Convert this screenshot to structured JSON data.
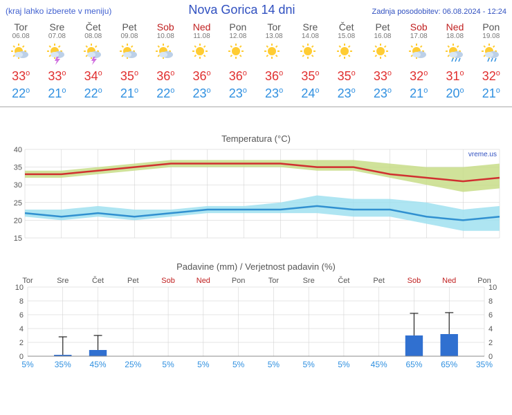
{
  "header": {
    "menu_hint": "(kraj lahko izberete v meniju)",
    "title": "Nova Gorica 14 dni",
    "updated": "Zadnja posodobitev: 06.08.2024 - 12:24"
  },
  "days": [
    {
      "name": "Tor",
      "date": "06.08",
      "weekend": false,
      "icon": "sun-cloud",
      "hi": 33,
      "lo": 22
    },
    {
      "name": "Sre",
      "date": "07.08",
      "weekend": false,
      "icon": "storm",
      "hi": 33,
      "lo": 21
    },
    {
      "name": "Čet",
      "date": "08.08",
      "weekend": false,
      "icon": "storm",
      "hi": 34,
      "lo": 22
    },
    {
      "name": "Pet",
      "date": "09.08",
      "weekend": false,
      "icon": "sun-cloud",
      "hi": 35,
      "lo": 21
    },
    {
      "name": "Sob",
      "date": "10.08",
      "weekend": true,
      "icon": "sun-cloud",
      "hi": 36,
      "lo": 22
    },
    {
      "name": "Ned",
      "date": "11.08",
      "weekend": true,
      "icon": "sun",
      "hi": 36,
      "lo": 23
    },
    {
      "name": "Pon",
      "date": "12.08",
      "weekend": false,
      "icon": "sun",
      "hi": 36,
      "lo": 23
    },
    {
      "name": "Tor",
      "date": "13.08",
      "weekend": false,
      "icon": "sun",
      "hi": 36,
      "lo": 23
    },
    {
      "name": "Sre",
      "date": "14.08",
      "weekend": false,
      "icon": "sun",
      "hi": 35,
      "lo": 24
    },
    {
      "name": "Čet",
      "date": "15.08",
      "weekend": false,
      "icon": "sun",
      "hi": 35,
      "lo": 23
    },
    {
      "name": "Pet",
      "date": "16.08",
      "weekend": false,
      "icon": "sun",
      "hi": 33,
      "lo": 23
    },
    {
      "name": "Sob",
      "date": "17.08",
      "weekend": true,
      "icon": "sun-cloud",
      "hi": 32,
      "lo": 21
    },
    {
      "name": "Ned",
      "date": "18.08",
      "weekend": true,
      "icon": "rain",
      "hi": 31,
      "lo": 20
    },
    {
      "name": "Pon",
      "date": "19.08",
      "weekend": false,
      "icon": "rain",
      "hi": 32,
      "lo": 21
    }
  ],
  "temp_chart": {
    "title": "Temperatura (°C)",
    "attrib": "vreme.us",
    "ylim": [
      15,
      40
    ],
    "ytick_step": 5,
    "grid_color": "#cccccc",
    "hi_line_color": "#d03030",
    "hi_band_color": "#c8dd88",
    "lo_line_color": "#3090d0",
    "lo_band_color": "#a0e0f0",
    "line_width": 2.5,
    "hi_band": {
      "upper": [
        34,
        34,
        35,
        36,
        37,
        37,
        37,
        37,
        37,
        37,
        36,
        35,
        35,
        36
      ],
      "lower": [
        32,
        32,
        33,
        34,
        35,
        35,
        35,
        35,
        34,
        34,
        32,
        30,
        28,
        29
      ]
    },
    "lo_band": {
      "upper": [
        23,
        23,
        24,
        23,
        23,
        24,
        24,
        25,
        27,
        26,
        26,
        25,
        23,
        24
      ],
      "lower": [
        21,
        20,
        21,
        20,
        21,
        22,
        22,
        22,
        22,
        21,
        21,
        19,
        17,
        17
      ]
    },
    "hi_series": [
      33,
      33,
      34,
      35,
      36,
      36,
      36,
      36,
      35,
      35,
      33,
      32,
      31,
      32
    ],
    "lo_series": [
      22,
      21,
      22,
      21,
      22,
      23,
      23,
      23,
      24,
      23,
      23,
      21,
      20,
      21
    ]
  },
  "precip_chart": {
    "title": "Padavine (mm) / Verjetnost padavin (%)",
    "ylim": [
      0,
      10
    ],
    "ytick_step": 2,
    "bar_color": "#3070d0",
    "error_color": "#222222",
    "grid_color": "#cccccc",
    "bars": [
      0,
      0.2,
      0.9,
      0,
      0,
      0,
      0,
      0,
      0,
      0,
      0,
      3.0,
      3.2,
      0
    ],
    "err_upper": [
      0,
      2.8,
      3.0,
      0,
      0,
      0,
      0,
      0,
      0,
      0,
      0,
      6.2,
      6.3,
      0
    ],
    "pct": [
      5,
      35,
      45,
      25,
      5,
      5,
      5,
      5,
      5,
      5,
      45,
      65,
      65,
      35
    ]
  }
}
